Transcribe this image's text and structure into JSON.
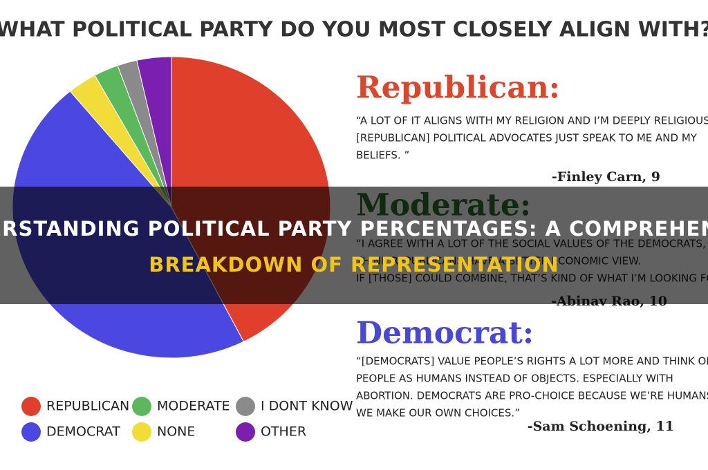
{
  "chart_data": {
    "type": "pie",
    "title": "WHAT POLITICAL PARTY DO YOU MOST CLOSELY ALIGN WITH?",
    "categories": [
      "REPUBLICAN",
      "DEMOCRAT",
      "NONE",
      "MODERATE",
      "I DONT KNOW",
      "OTHER"
    ],
    "values": [
      42.5,
      46.5,
      3,
      2.5,
      2,
      3.5
    ],
    "colors": [
      "#e0402b",
      "#4a48e0",
      "#f2dc3a",
      "#5cb85c",
      "#8a8a8a",
      "#7a1fb0"
    ]
  },
  "quotes": [
    {
      "heading": "Republican:",
      "color": "#d9482e",
      "lines": [
        "“A LOT OF IT ALIGNS WITH MY RELIGION AND I’M DEEPLY RELIGIOUS.",
        "[REPUBLICAN] POLITICAL ADVOCATES JUST SPEAK TO ME AND MY",
        "BELIEFS. ”"
      ],
      "author": "-Finley Carn, 9"
    },
    {
      "heading": "Moderate:",
      "color": "#2e6b2e",
      "lines": [
        "“I AGREE WITH A LOT OF THE SOCIAL VALUES OF THE DEMOCRATS, BUT I",
        "THINK REPUBLICANS HAVE A BETTER ECONOMIC VIEW.",
        "IF [THOSE] COULD COMBINE, THAT’S KIND OF WHAT I’M LOOKING FOR.”"
      ],
      "author": "-Abinav Rao, 10"
    },
    {
      "heading": "Democrat:",
      "color": "#4a48d0",
      "lines": [
        "“[DEMOCRATS] VALUE PEOPLE’S RIGHTS A LOT MORE AND THINK OF",
        "PEOPLE AS HUMANS INSTEAD OF OBJECTS. ESPECIALLY WITH",
        "ABORTION. DEMOCRATS ARE PRO-CHOICE BECAUSE WE’RE HUMANS,",
        "WE MAKE OUR OWN CHOICES.”"
      ],
      "author": "-Sam Schoening, 11"
    }
  ],
  "banner": {
    "lines": [
      "UNDERSTANDING POLITICAL PARTY PERCENTAGES: A COMPREHENSIVE",
      "BREAKDOWN OF REPRESENTATION"
    ]
  }
}
